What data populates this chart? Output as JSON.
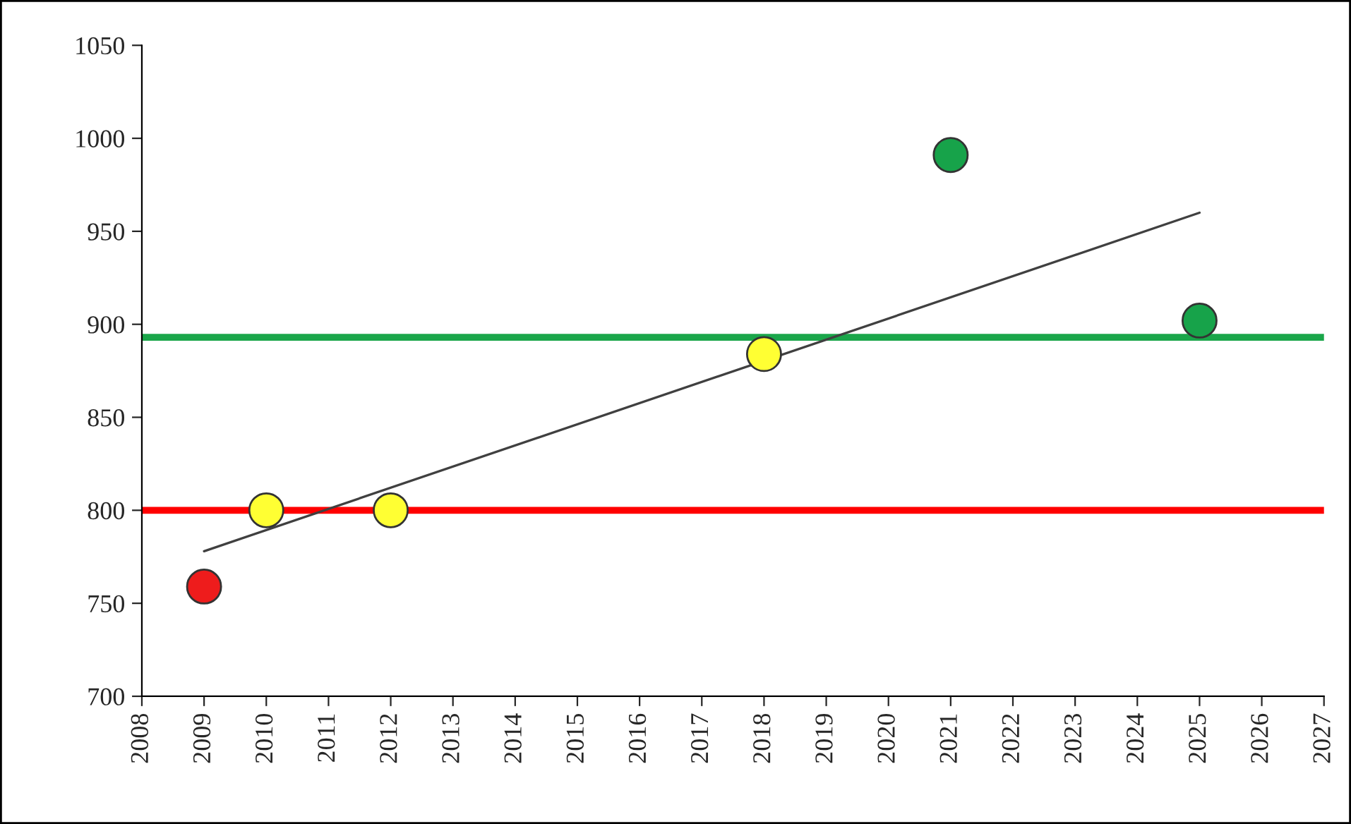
{
  "chart_data": {
    "type": "scatter",
    "xlim": [
      2008,
      2027
    ],
    "xticks": [
      2008,
      2009,
      2010,
      2011,
      2012,
      2013,
      2014,
      2015,
      2016,
      2017,
      2018,
      2019,
      2020,
      2021,
      2022,
      2023,
      2024,
      2025,
      2026,
      2027
    ],
    "ylim": [
      700,
      1050
    ],
    "yticks": [
      700,
      750,
      800,
      850,
      900,
      950,
      1000,
      1050
    ],
    "grid": false,
    "legend": false,
    "series": [
      {
        "marker": "circle",
        "x": [
          2009,
          2010,
          2012,
          2018,
          2021,
          2025
        ],
        "values": [
          759,
          800,
          800,
          884,
          991,
          902
        ],
        "colors": [
          "#ee1c1c",
          "#ffff33",
          "#ffff33",
          "#ffff33",
          "#17a34a",
          "#17a34a"
        ]
      },
      {
        "type": "line",
        "x": [
          2009,
          2025
        ],
        "values": [
          778,
          960
        ],
        "color": "#404040"
      }
    ],
    "ref_lines": [
      {
        "axis": "y",
        "value": 893,
        "color": "#1aa64a"
      },
      {
        "axis": "y",
        "value": 800,
        "color": "#ff0000"
      }
    ]
  }
}
